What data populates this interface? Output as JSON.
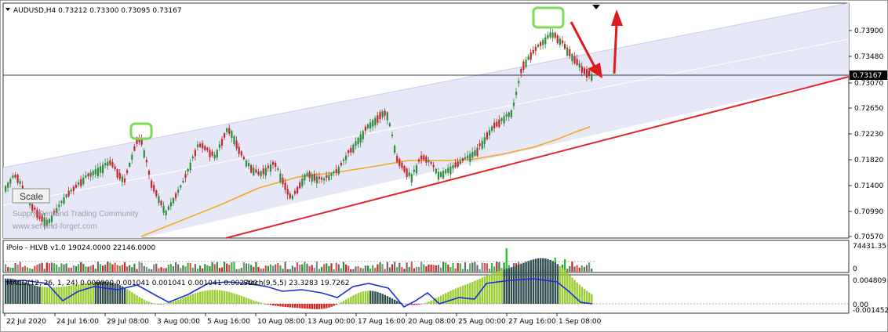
{
  "header": {
    "symbol_info": "AUDUSD,H4  0.73212 0.73300 0.73095 0.73167"
  },
  "watermark": {
    "line1": "Supply Demand Trading Community",
    "line2": "www.set-and-forget.com"
  },
  "scale_button": {
    "label": "Scale"
  },
  "price_axis": {
    "ticks": [
      "0.73900",
      "0.73480",
      "0.73070",
      "0.72650",
      "0.72230",
      "0.71820",
      "0.71400",
      "0.70990",
      "0.70570"
    ],
    "current_price": "0.73167"
  },
  "indicators": {
    "volume_label": "iPolo - HLVB v1.0 19024.0000 22146.0000",
    "volume_axis_top": "74431.35",
    "volume_axis_bottom": "0",
    "macd_label": "MACD(12, 26, 1, 24) 0.000000 0.001041 0.001041 0.001041 0.002700",
    "stoch_label": "Stoch(9,5,5) 23.3283 19.7262",
    "macd_axis_top": "0.004809",
    "macd_axis_mid": "0.00",
    "macd_axis_bottom": "-0.001452"
  },
  "time_axis": {
    "labels": [
      "22 Jul 2020",
      "24 Jul 16:00",
      "29 Jul 08:00",
      "3 Aug 00:00",
      "5 Aug 16:00",
      "10 Aug 08:00",
      "13 Aug 00:00",
      "17 Aug 16:00",
      "20 Aug 08:00",
      "25 Aug 00:00",
      "27 Aug 16:00",
      "1 Sep 08:00"
    ]
  },
  "colors": {
    "bull": "#2e8b3a",
    "bear": "#c0272d",
    "channel_fill": "#e6e8f8",
    "trendline": "#e0262b",
    "ma": "#f5a623",
    "highlight": "#7ed957",
    "arrow": "#e01b1b",
    "macd_hist": "#9acd32",
    "macd_dark": "#2f4f4f",
    "stoch_line": "#1a2fd6"
  }
}
